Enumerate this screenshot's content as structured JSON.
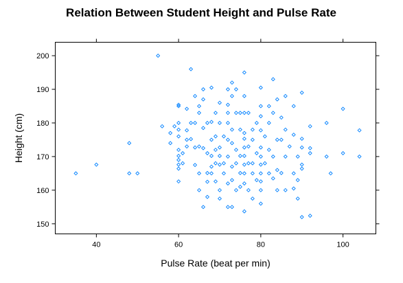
{
  "chart_data": {
    "type": "scatter",
    "title": "Relation Between Student Height and Pulse Rate",
    "xlabel": "Pulse Rate (beat per min)",
    "ylabel": "Height (cm)",
    "xlim": [
      30,
      108
    ],
    "ylim": [
      147,
      204
    ],
    "xticks": [
      40,
      60,
      80,
      100
    ],
    "yticks": [
      150,
      160,
      170,
      180,
      190,
      200
    ],
    "grid": false,
    "point_color": "#0080ff",
    "points": [
      [
        35,
        165
      ],
      [
        40,
        167.6
      ],
      [
        48,
        174
      ],
      [
        48,
        165
      ],
      [
        50,
        165
      ],
      [
        55,
        200
      ],
      [
        56,
        179
      ],
      [
        58,
        174
      ],
      [
        58,
        177
      ],
      [
        59,
        179
      ],
      [
        60,
        185.4
      ],
      [
        60,
        185
      ],
      [
        60,
        180
      ],
      [
        60,
        178
      ],
      [
        60,
        176
      ],
      [
        60,
        172
      ],
      [
        60,
        170.2
      ],
      [
        60,
        169
      ],
      [
        60,
        167.6
      ],
      [
        60,
        166.4
      ],
      [
        60,
        162.6
      ],
      [
        61,
        171
      ],
      [
        61,
        168
      ],
      [
        62,
        184.2
      ],
      [
        62,
        177.8
      ],
      [
        62,
        175
      ],
      [
        62,
        173
      ],
      [
        63,
        196
      ],
      [
        63,
        180
      ],
      [
        63,
        175.2
      ],
      [
        64,
        188
      ],
      [
        64,
        180
      ],
      [
        64,
        172.7
      ],
      [
        64,
        167.5
      ],
      [
        65,
        185
      ],
      [
        65,
        183
      ],
      [
        65,
        173
      ],
      [
        65,
        165
      ],
      [
        65,
        160
      ],
      [
        66,
        190
      ],
      [
        66,
        187
      ],
      [
        66,
        178.5
      ],
      [
        66,
        172.5
      ],
      [
        66,
        155
      ],
      [
        67,
        180
      ],
      [
        67,
        171
      ],
      [
        67,
        165.1
      ],
      [
        67,
        162.5
      ],
      [
        67,
        158
      ],
      [
        68,
        190.5
      ],
      [
        68,
        180.3
      ],
      [
        68,
        175
      ],
      [
        68,
        170.2
      ],
      [
        68,
        167
      ],
      [
        68,
        165
      ],
      [
        69,
        183
      ],
      [
        69,
        176
      ],
      [
        69,
        172
      ],
      [
        69,
        168
      ],
      [
        69,
        162.6
      ],
      [
        70,
        186
      ],
      [
        70,
        180
      ],
      [
        70,
        172.7
      ],
      [
        70,
        170.2
      ],
      [
        70,
        167.6
      ],
      [
        70,
        160
      ],
      [
        70,
        157.5
      ],
      [
        71,
        176
      ],
      [
        71,
        168
      ],
      [
        71,
        165
      ],
      [
        72,
        190
      ],
      [
        72,
        185.4
      ],
      [
        72,
        183
      ],
      [
        72,
        180
      ],
      [
        72,
        175
      ],
      [
        72,
        170
      ],
      [
        72,
        162
      ],
      [
        72,
        155
      ],
      [
        73,
        192
      ],
      [
        73,
        188
      ],
      [
        73,
        178
      ],
      [
        73,
        174
      ],
      [
        73,
        167
      ],
      [
        73,
        163
      ],
      [
        73,
        155
      ],
      [
        74,
        190
      ],
      [
        74,
        183
      ],
      [
        74,
        172
      ],
      [
        74,
        168
      ],
      [
        74,
        160
      ],
      [
        75,
        183
      ],
      [
        75,
        178
      ],
      [
        75,
        170.2
      ],
      [
        75,
        165.1
      ],
      [
        75,
        161
      ],
      [
        76,
        195
      ],
      [
        76,
        188
      ],
      [
        76,
        183
      ],
      [
        76,
        177
      ],
      [
        76,
        175.3
      ],
      [
        76,
        172.7
      ],
      [
        76,
        170.2
      ],
      [
        76,
        167.6
      ],
      [
        76,
        165
      ],
      [
        76,
        162
      ],
      [
        76,
        153.7
      ],
      [
        77,
        183
      ],
      [
        77,
        173
      ],
      [
        77,
        168
      ],
      [
        77,
        160
      ],
      [
        78,
        178
      ],
      [
        78,
        175
      ],
      [
        78,
        168
      ],
      [
        78,
        165
      ],
      [
        78,
        157.5
      ],
      [
        79,
        163
      ],
      [
        79,
        180
      ],
      [
        79,
        171
      ],
      [
        80,
        190.5
      ],
      [
        80,
        185
      ],
      [
        80,
        182
      ],
      [
        80,
        177.8
      ],
      [
        80,
        172.7
      ],
      [
        80,
        170
      ],
      [
        80,
        167.6
      ],
      [
        80,
        165
      ],
      [
        80,
        162.6
      ],
      [
        80,
        160
      ],
      [
        80,
        156
      ],
      [
        81,
        176
      ],
      [
        81,
        168
      ],
      [
        82,
        185
      ],
      [
        82,
        180
      ],
      [
        82,
        172
      ],
      [
        82,
        165
      ],
      [
        83,
        193
      ],
      [
        83,
        183
      ],
      [
        83,
        170
      ],
      [
        83,
        163.5
      ],
      [
        84,
        187
      ],
      [
        84,
        175
      ],
      [
        84,
        166
      ],
      [
        84,
        160
      ],
      [
        85,
        181.6
      ],
      [
        85,
        175
      ],
      [
        85,
        165.1
      ],
      [
        86,
        188
      ],
      [
        86,
        178
      ],
      [
        86,
        170
      ],
      [
        86,
        160
      ],
      [
        87,
        173
      ],
      [
        88,
        185
      ],
      [
        88,
        176.5
      ],
      [
        88,
        165
      ],
      [
        88,
        160.5
      ],
      [
        89,
        170
      ],
      [
        89,
        157.5
      ],
      [
        89,
        163
      ],
      [
        90,
        189
      ],
      [
        90,
        175.3
      ],
      [
        90,
        172.7
      ],
      [
        90,
        167.6
      ],
      [
        90,
        166.4
      ],
      [
        90,
        152
      ],
      [
        92,
        172.5
      ],
      [
        92,
        179
      ],
      [
        92,
        152.4
      ],
      [
        92,
        171
      ],
      [
        96,
        180
      ],
      [
        96,
        170
      ],
      [
        97,
        165
      ],
      [
        100,
        184.2
      ],
      [
        100,
        171
      ],
      [
        104,
        177.8
      ],
      [
        104,
        170
      ]
    ]
  }
}
